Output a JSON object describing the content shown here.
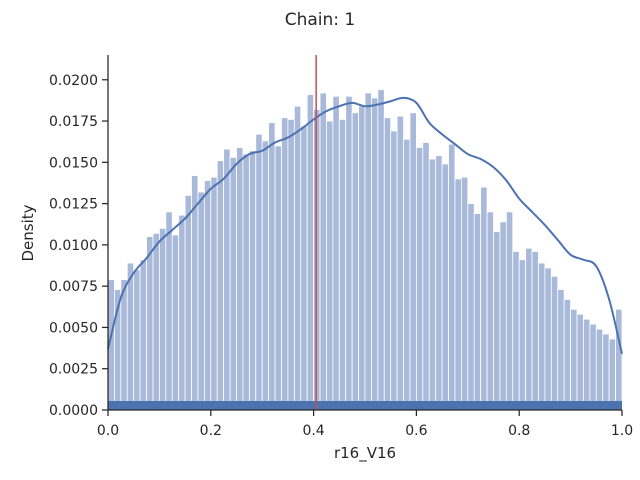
{
  "figure_title": "Chain: 1",
  "chart_data": {
    "type": "bar",
    "title": "Chain: 1",
    "xlabel": "r16_V16",
    "ylabel": "Density",
    "xlim": [
      0.0,
      1.0
    ],
    "ylim": [
      0.0,
      0.0215
    ],
    "xticks": [
      "0.0",
      "0.2",
      "0.4",
      "0.6",
      "0.8",
      "1.0"
    ],
    "yticks": [
      "0.0000",
      "0.0025",
      "0.0050",
      "0.0075",
      "0.0100",
      "0.0125",
      "0.0150",
      "0.0175",
      "0.0200"
    ],
    "bin_width": 0.0125,
    "bin_starts": [
      0.0,
      0.0125,
      0.025,
      0.0375,
      0.05,
      0.0625,
      0.075,
      0.0875,
      0.1,
      0.1125,
      0.125,
      0.1375,
      0.15,
      0.1625,
      0.175,
      0.1875,
      0.2,
      0.2125,
      0.225,
      0.2375,
      0.25,
      0.2625,
      0.275,
      0.2875,
      0.3,
      0.3125,
      0.325,
      0.3375,
      0.35,
      0.3625,
      0.375,
      0.3875,
      0.4,
      0.4125,
      0.425,
      0.4375,
      0.45,
      0.4625,
      0.475,
      0.4875,
      0.5,
      0.5125,
      0.525,
      0.5375,
      0.55,
      0.5625,
      0.575,
      0.5875,
      0.6,
      0.6125,
      0.625,
      0.6375,
      0.65,
      0.6625,
      0.675,
      0.6875,
      0.7,
      0.7125,
      0.725,
      0.7375,
      0.75,
      0.7625,
      0.775,
      0.7875,
      0.8,
      0.8125,
      0.825,
      0.8375,
      0.85,
      0.8625,
      0.875,
      0.8875,
      0.9,
      0.9125,
      0.925,
      0.9375,
      0.95,
      0.9625,
      0.975,
      0.9875
    ],
    "values": [
      0.0079,
      0.0073,
      0.0079,
      0.0089,
      0.0085,
      0.0091,
      0.0105,
      0.0107,
      0.011,
      0.012,
      0.0106,
      0.0118,
      0.013,
      0.0142,
      0.0132,
      0.0139,
      0.0141,
      0.0151,
      0.0158,
      0.0153,
      0.0159,
      0.0155,
      0.0157,
      0.0167,
      0.0163,
      0.0174,
      0.016,
      0.0177,
      0.0176,
      0.0184,
      0.0172,
      0.0191,
      0.0182,
      0.0192,
      0.0175,
      0.019,
      0.0176,
      0.019,
      0.018,
      0.0184,
      0.0192,
      0.0189,
      0.0194,
      0.0177,
      0.0169,
      0.0178,
      0.0164,
      0.018,
      0.0159,
      0.0162,
      0.0152,
      0.0154,
      0.0149,
      0.0161,
      0.014,
      0.0141,
      0.0125,
      0.0119,
      0.0135,
      0.012,
      0.0108,
      0.0114,
      0.012,
      0.0096,
      0.0091,
      0.0098,
      0.0096,
      0.0089,
      0.0086,
      0.0081,
      0.0073,
      0.0067,
      0.0061,
      0.0058,
      0.0055,
      0.0052,
      0.0049,
      0.0046,
      0.0043,
      0.0061
    ],
    "kde": {
      "x": [
        0.0,
        0.025,
        0.05,
        0.075,
        0.1,
        0.125,
        0.15,
        0.175,
        0.2,
        0.225,
        0.25,
        0.275,
        0.3,
        0.325,
        0.35,
        0.375,
        0.4,
        0.425,
        0.45,
        0.475,
        0.5,
        0.525,
        0.55,
        0.575,
        0.6,
        0.625,
        0.65,
        0.675,
        0.7,
        0.725,
        0.75,
        0.775,
        0.8,
        0.825,
        0.85,
        0.875,
        0.9,
        0.925,
        0.95,
        0.975,
        1.0
      ],
      "y": [
        0.0037,
        0.0068,
        0.0083,
        0.0092,
        0.0102,
        0.0109,
        0.0116,
        0.0125,
        0.0134,
        0.014,
        0.0149,
        0.0155,
        0.0157,
        0.0162,
        0.0165,
        0.017,
        0.0176,
        0.0181,
        0.0184,
        0.0186,
        0.0184,
        0.0185,
        0.0187,
        0.0189,
        0.0186,
        0.0174,
        0.0167,
        0.0161,
        0.0155,
        0.0152,
        0.0147,
        0.0139,
        0.0128,
        0.012,
        0.0112,
        0.0103,
        0.0094,
        0.0091,
        0.0087,
        0.0067,
        0.0034
      ]
    },
    "vline_x": 0.405,
    "colors": {
      "bar": "#a8b9d9",
      "bar_edge": "#ffffff",
      "kde": "#4c72b0",
      "rug": "#4c72b0",
      "vline": "#c44e52",
      "axis": "#262626"
    },
    "grid": false,
    "legend": "none"
  }
}
